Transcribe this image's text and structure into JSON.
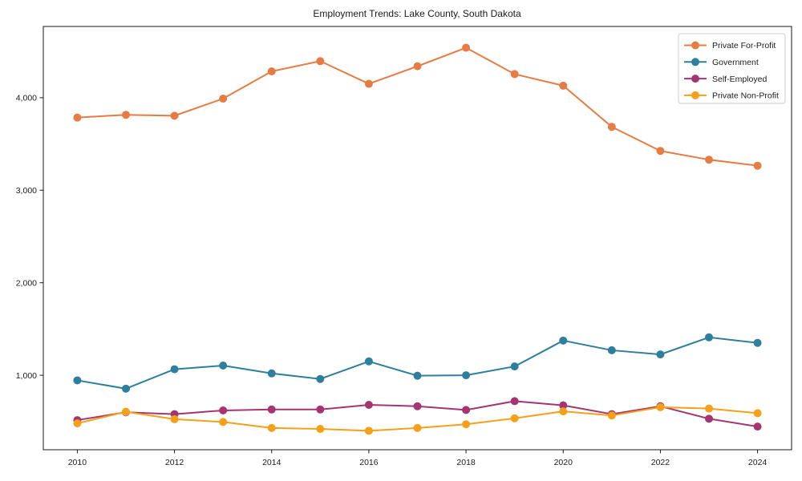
{
  "chart_data": {
    "type": "line",
    "title": "Employment Trends: Lake County, South Dakota",
    "x": [
      2010,
      2011,
      2012,
      2013,
      2014,
      2015,
      2016,
      2017,
      2018,
      2019,
      2020,
      2021,
      2022,
      2023,
      2024
    ],
    "series": [
      {
        "name": "Private For-Profit",
        "color": "#e67c44",
        "values": [
          3785,
          3815,
          3805,
          3990,
          4285,
          4395,
          4150,
          4340,
          4540,
          4255,
          4130,
          3685,
          3425,
          3330,
          3265
        ]
      },
      {
        "name": "Government",
        "color": "#2e7e9e",
        "values": [
          945,
          855,
          1065,
          1105,
          1020,
          960,
          1150,
          995,
          1000,
          1095,
          1375,
          1270,
          1225,
          1410,
          1350
        ]
      },
      {
        "name": "Self-Employed",
        "color": "#a53571",
        "values": [
          515,
          600,
          580,
          620,
          630,
          630,
          680,
          665,
          625,
          720,
          675,
          580,
          665,
          530,
          445
        ]
      },
      {
        "name": "Private Non-Profit",
        "color": "#f5a01b",
        "values": [
          480,
          605,
          525,
          495,
          430,
          420,
          400,
          430,
          470,
          535,
          610,
          565,
          655,
          640,
          590
        ]
      }
    ],
    "xticks": {
      "values": [
        2010,
        2012,
        2014,
        2016,
        2018,
        2020,
        2022,
        2024
      ],
      "labels": [
        "2010",
        "2012",
        "2014",
        "2016",
        "2018",
        "2020",
        "2022",
        "2024"
      ]
    },
    "yticks": {
      "values": [
        1000,
        2000,
        3000,
        4000
      ],
      "labels": [
        "1,000",
        "2,000",
        "3,000",
        "4,000"
      ]
    },
    "xlim": [
      2009.3,
      2024.7
    ],
    "ylim": [
      195,
      4770
    ],
    "grid": false,
    "legend_position": "upper right",
    "marker": "circle",
    "line_width": 2,
    "axis_color": "#1a1a1a",
    "text_color": "#1a1a1a",
    "legend_border_color": "#cccccc",
    "background_color": "#ffffff"
  }
}
